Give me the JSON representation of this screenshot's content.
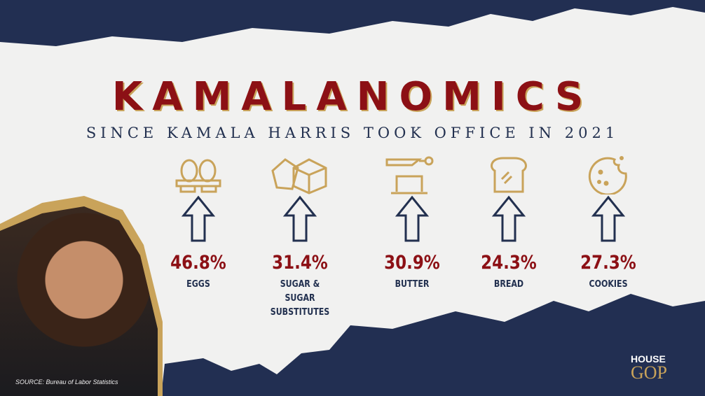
{
  "title": "KAMALANOMICS",
  "subtitle": "SINCE KAMALA HARRIS TOOK OFFICE IN 2021",
  "items": [
    {
      "icon": "eggs-icon",
      "value": "46.8%",
      "label": "EGGS"
    },
    {
      "icon": "sugar-cubes-icon",
      "value": "31.4%",
      "label": "SUGAR &",
      "label2": "SUGAR SUBSTITUTES"
    },
    {
      "icon": "butter-icon",
      "value": "30.9%",
      "label": "BUTTER"
    },
    {
      "icon": "bread-icon",
      "value": "24.3%",
      "label": "BREAD"
    },
    {
      "icon": "cookie-icon",
      "value": "27.3%",
      "label": "COOKIES"
    }
  ],
  "source": "SOURCE: Bureau of Labor Statistics",
  "logo": {
    "line1": "HOUSE",
    "line2": "GOP"
  },
  "colors": {
    "navy": "#222f52",
    "red": "#8c1015",
    "gold": "#c9a35a"
  }
}
